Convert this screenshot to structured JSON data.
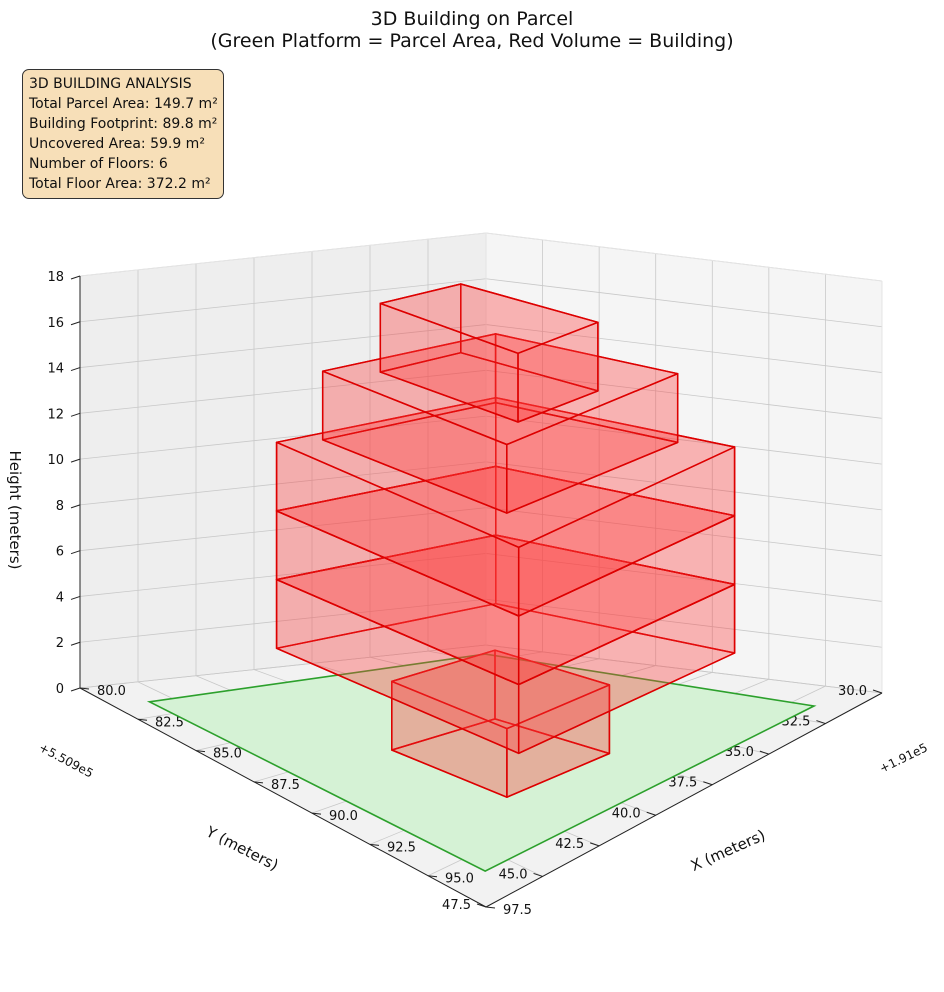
{
  "title_lines": [
    "3D Building on Parcel",
    "(Green Platform = Parcel Area, Red Volume = Building)"
  ],
  "info_box": {
    "heading": "3D BUILDING ANALYSIS",
    "lines": [
      "Total Parcel Area: 149.7 m²",
      "Building Footprint: 89.8 m²",
      "Uncovered Area: 59.9 m²",
      "Number of Floors: 6",
      "Total Floor Area: 372.2 m²"
    ]
  },
  "colors": {
    "parcel_fill": "#d5f2d5",
    "parcel_edge": "#2ca02c",
    "building_face": "#ff3b3b",
    "building_edge": "#dd0000",
    "info_bg": "#f7dfb8",
    "pane_left": "#eeeeee",
    "pane_right": "#f5f5f5",
    "pane_floor": "#f2f2f2",
    "grid": "#c8c8c8"
  },
  "chart_data": {
    "type": "3d-box",
    "title": "3D Building on Parcel\n(Green Platform = Parcel Area, Red Volume = Building)",
    "xlabel": "X (meters)",
    "ylabel": "Y (meters)",
    "zlabel": "Height (meters)",
    "x_offset_label": "+1.91e5",
    "y_offset_label": "+5.509e5",
    "xlim": [
      80.0,
      97.5
    ],
    "ylim": [
      30.0,
      47.5
    ],
    "zlim": [
      0,
      18
    ],
    "x_ticks": [
      "80.0",
      "82.5",
      "85.0",
      "87.5",
      "90.0",
      "92.5",
      "95.0",
      "97.5"
    ],
    "y_ticks": [
      "30.0",
      "32.5",
      "35.0",
      "37.5",
      "40.0",
      "42.5",
      "45.0",
      "47.5"
    ],
    "z_ticks": [
      "0",
      "2",
      "4",
      "6",
      "8",
      "10",
      "12",
      "14",
      "16",
      "18"
    ],
    "grid": true,
    "parcel": {
      "x": [
        81.5,
        96.0
      ],
      "y": [
        31.5,
        46.0
      ],
      "z": 0,
      "area_m2": 149.7
    },
    "floors": [
      {
        "floor": 1,
        "x": [
          88.0,
          93.0
        ],
        "y": [
          37.5,
          42.0
        ],
        "z": [
          0,
          3
        ]
      },
      {
        "floor": 2,
        "x": [
          84.0,
          94.5
        ],
        "y": [
          33.5,
          43.0
        ],
        "z": [
          3,
          6
        ]
      },
      {
        "floor": 3,
        "x": [
          84.0,
          94.5
        ],
        "y": [
          33.5,
          43.0
        ],
        "z": [
          6,
          9
        ]
      },
      {
        "floor": 4,
        "x": [
          84.0,
          94.5
        ],
        "y": [
          33.5,
          43.0
        ],
        "z": [
          9,
          12
        ]
      },
      {
        "floor": 5,
        "x": [
          84.5,
          92.5
        ],
        "y": [
          34.0,
          41.5
        ],
        "z": [
          12,
          15
        ]
      },
      {
        "floor": 6,
        "x": [
          85.5,
          91.5
        ],
        "y": [
          36.5,
          40.0
        ],
        "z": [
          15,
          18
        ]
      }
    ]
  }
}
